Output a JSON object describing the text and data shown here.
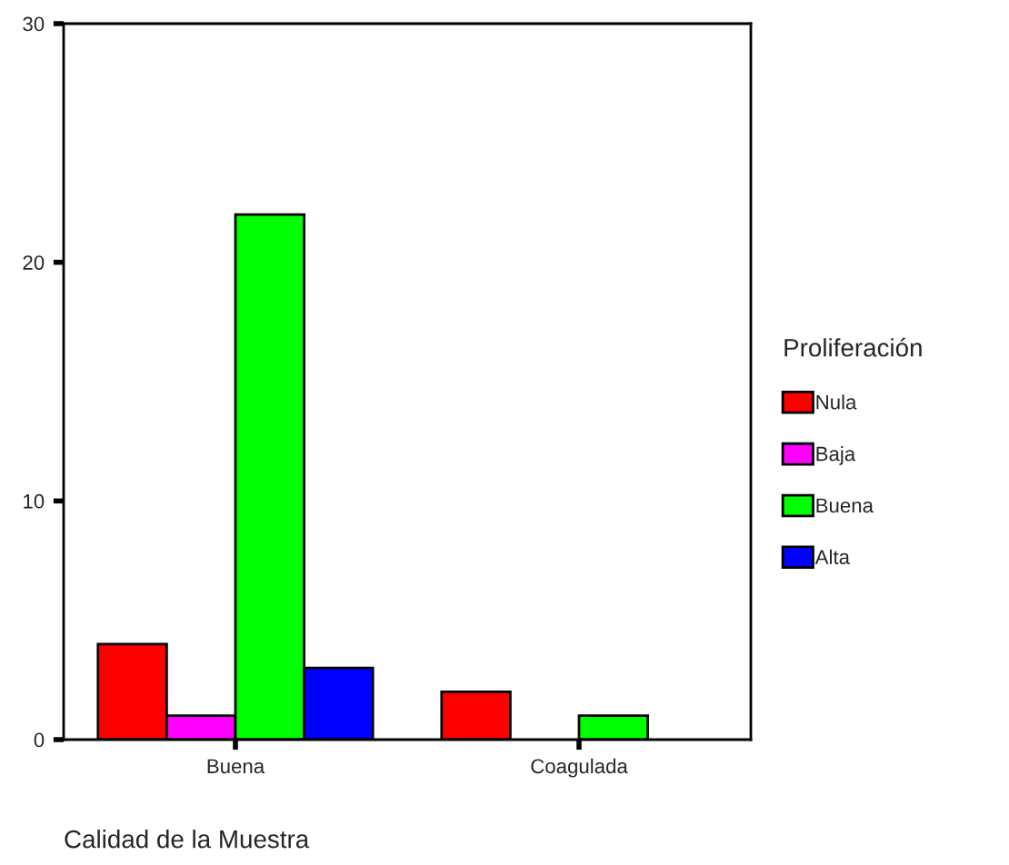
{
  "chart_data": {
    "type": "bar",
    "xlabel": "Calidad de la Muestra",
    "legend_title": "Proliferación",
    "categories": [
      "Buena",
      "Coagulada"
    ],
    "series": [
      {
        "name": "Nula",
        "color": "#ff0000",
        "values": [
          4,
          2
        ]
      },
      {
        "name": "Baja",
        "color": "#ff00ff",
        "values": [
          1,
          null
        ]
      },
      {
        "name": "Buena",
        "color": "#00ff00",
        "values": [
          22,
          1
        ]
      },
      {
        "name": "Alta",
        "color": "#0000ff",
        "values": [
          3,
          null
        ]
      }
    ],
    "ylim": [
      0,
      30
    ],
    "yticks": [
      0,
      10,
      20,
      30
    ],
    "grid": false,
    "legend": "right"
  }
}
